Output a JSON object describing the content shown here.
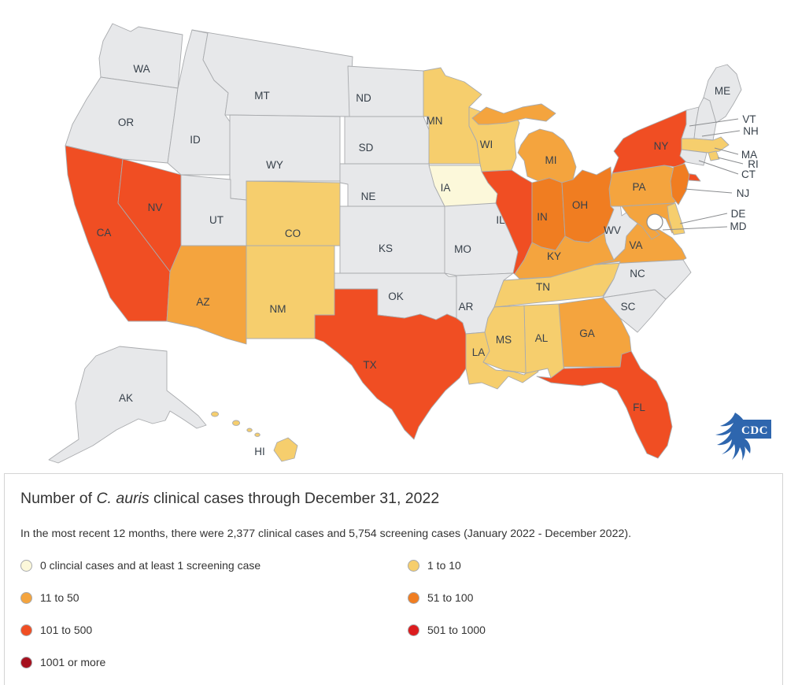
{
  "title": {
    "prefix": "Number of ",
    "italic": "C. auris",
    "suffix": " clinical cases through December 31, 2022"
  },
  "subtitle": "In the most recent 12 months, there were 2,377 clinical cases and 5,754 screening cases (January 2022 - December 2022).",
  "logo": {
    "label": "CDC",
    "color": "#2e66ae"
  },
  "legend": {
    "no_data_color": "#e7e8ea",
    "items": [
      {
        "key": "zero",
        "label": "0 clincial cases and at least 1 screening case",
        "color": "#fcf8da"
      },
      {
        "key": "1-10",
        "label": "1 to 10",
        "color": "#f6ce6d"
      },
      {
        "key": "11-50",
        "label": "11 to 50",
        "color": "#f4a43e"
      },
      {
        "key": "51-100",
        "label": "51 to 100",
        "color": "#f07d21"
      },
      {
        "key": "101-500",
        "label": "101 to 500",
        "color": "#f04e23"
      },
      {
        "key": "501-1000",
        "label": "501 to 1000",
        "color": "#dc1c1e"
      },
      {
        "key": "1001-plus",
        "label": "1001 or more",
        "color": "#a6101e"
      }
    ]
  },
  "map": {
    "dc_marker": true,
    "states": [
      {
        "code": "WA",
        "label": "WA",
        "category": "none"
      },
      {
        "code": "OR",
        "label": "OR",
        "category": "none"
      },
      {
        "code": "CA",
        "label": "CA",
        "category": "101-500"
      },
      {
        "code": "NV",
        "label": "NV",
        "category": "101-500"
      },
      {
        "code": "ID",
        "label": "ID",
        "category": "none"
      },
      {
        "code": "MT",
        "label": "MT",
        "category": "none"
      },
      {
        "code": "WY",
        "label": "WY",
        "category": "none"
      },
      {
        "code": "UT",
        "label": "UT",
        "category": "none"
      },
      {
        "code": "CO",
        "label": "CO",
        "category": "1-10"
      },
      {
        "code": "AZ",
        "label": "AZ",
        "category": "11-50"
      },
      {
        "code": "NM",
        "label": "NM",
        "category": "1-10"
      },
      {
        "code": "ND",
        "label": "ND",
        "category": "none"
      },
      {
        "code": "SD",
        "label": "SD",
        "category": "none"
      },
      {
        "code": "NE",
        "label": "NE",
        "category": "none"
      },
      {
        "code": "KS",
        "label": "KS",
        "category": "none"
      },
      {
        "code": "OK",
        "label": "OK",
        "category": "none"
      },
      {
        "code": "TX",
        "label": "TX",
        "category": "101-500"
      },
      {
        "code": "MN",
        "label": "MN",
        "category": "1-10"
      },
      {
        "code": "IA",
        "label": "IA",
        "category": "zero"
      },
      {
        "code": "MO",
        "label": "MO",
        "category": "none"
      },
      {
        "code": "AR",
        "label": "AR",
        "category": "none"
      },
      {
        "code": "LA",
        "label": "LA",
        "category": "1-10"
      },
      {
        "code": "WI",
        "label": "WI",
        "category": "1-10"
      },
      {
        "code": "IL",
        "label": "IL",
        "category": "101-500"
      },
      {
        "code": "MI",
        "label": "MI",
        "category": "11-50"
      },
      {
        "code": "IN",
        "label": "IN",
        "category": "51-100"
      },
      {
        "code": "OH",
        "label": "OH",
        "category": "51-100"
      },
      {
        "code": "KY",
        "label": "KY",
        "category": "11-50"
      },
      {
        "code": "TN",
        "label": "TN",
        "category": "1-10"
      },
      {
        "code": "WV",
        "label": "WV",
        "category": "none"
      },
      {
        "code": "VA",
        "label": "VA",
        "category": "11-50"
      },
      {
        "code": "NC",
        "label": "NC",
        "category": "none"
      },
      {
        "code": "SC",
        "label": "SC",
        "category": "none"
      },
      {
        "code": "GA",
        "label": "GA",
        "category": "11-50"
      },
      {
        "code": "AL",
        "label": "AL",
        "category": "1-10"
      },
      {
        "code": "MS",
        "label": "MS",
        "category": "1-10"
      },
      {
        "code": "FL",
        "label": "FL",
        "category": "101-500"
      },
      {
        "code": "PA",
        "label": "PA",
        "category": "11-50"
      },
      {
        "code": "NY",
        "label": "NY",
        "category": "101-500"
      },
      {
        "code": "NJ",
        "label": "NJ",
        "category": "51-100",
        "leader": true
      },
      {
        "code": "MD",
        "label": "MD",
        "category": "11-50",
        "leader": true
      },
      {
        "code": "DE",
        "label": "DE",
        "category": "1-10",
        "leader": true
      },
      {
        "code": "VT",
        "label": "VT",
        "category": "none",
        "leader": true
      },
      {
        "code": "NH",
        "label": "NH",
        "category": "none",
        "leader": true
      },
      {
        "code": "ME",
        "label": "ME",
        "category": "none"
      },
      {
        "code": "MA",
        "label": "MA",
        "category": "1-10",
        "leader": true
      },
      {
        "code": "RI",
        "label": "RI",
        "category": "1-10",
        "leader": true
      },
      {
        "code": "CT",
        "label": "CT",
        "category": "none",
        "leader": true
      },
      {
        "code": "AK",
        "label": "AK",
        "category": "none"
      },
      {
        "code": "HI",
        "label": "HI",
        "category": "1-10"
      }
    ]
  }
}
